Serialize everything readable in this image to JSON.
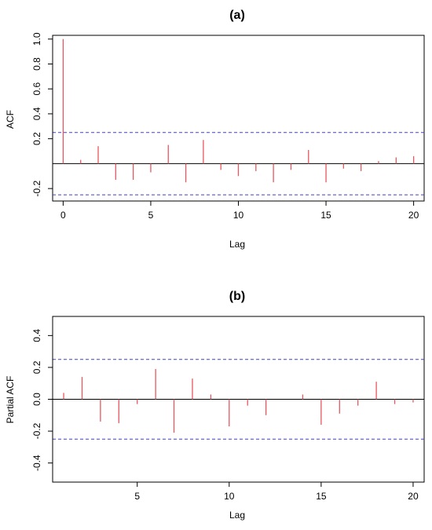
{
  "chart_data": [
    {
      "type": "bar",
      "title": "(a)",
      "xlabel": "Lag",
      "ylabel": "ACF",
      "xlim": [
        -0.6,
        20.6
      ],
      "ylim": [
        -0.3,
        1.03
      ],
      "x_ticks": [
        0,
        5,
        10,
        15,
        20
      ],
      "y_ticks": [
        -0.2,
        0.2,
        0.4,
        0.6,
        0.8,
        1.0
      ],
      "y_tick_labels": [
        "-0.2",
        "0.2",
        "0.4",
        "0.6",
        "0.8",
        "1.0"
      ],
      "confidence_bounds": [
        0.25,
        -0.25
      ],
      "bar_color": "#e8575f",
      "bound_color": "#4040c0",
      "x": [
        0,
        1,
        2,
        3,
        4,
        5,
        6,
        7,
        8,
        9,
        10,
        11,
        12,
        13,
        14,
        15,
        16,
        17,
        18,
        19,
        20
      ],
      "values": [
        1.0,
        0.03,
        0.14,
        -0.13,
        -0.13,
        -0.07,
        0.15,
        -0.15,
        0.19,
        -0.05,
        -0.1,
        -0.06,
        -0.15,
        -0.05,
        0.11,
        -0.15,
        -0.04,
        -0.06,
        0.02,
        0.05,
        0.06
      ]
    },
    {
      "type": "bar",
      "title": "(b)",
      "xlabel": "Lag",
      "ylabel": "Partial ACF",
      "xlim": [
        0.4,
        20.6
      ],
      "ylim": [
        -0.52,
        0.52
      ],
      "x_ticks": [
        5,
        10,
        15,
        20
      ],
      "y_ticks": [
        -0.4,
        -0.2,
        0.0,
        0.2,
        0.4
      ],
      "y_tick_labels": [
        "-0.4",
        "-0.2",
        "0.0",
        "0.2",
        "0.4"
      ],
      "confidence_bounds": [
        0.25,
        -0.25
      ],
      "bar_color": "#e8575f",
      "bound_color": "#4040c0",
      "x": [
        1,
        2,
        3,
        4,
        5,
        6,
        7,
        8,
        9,
        10,
        11,
        12,
        13,
        14,
        15,
        16,
        17,
        18,
        19,
        20
      ],
      "values": [
        0.04,
        0.14,
        -0.14,
        -0.15,
        -0.03,
        0.19,
        -0.21,
        0.13,
        0.03,
        -0.17,
        -0.04,
        -0.1,
        0.0,
        0.03,
        -0.16,
        -0.09,
        -0.04,
        0.11,
        -0.03,
        -0.02
      ]
    }
  ]
}
